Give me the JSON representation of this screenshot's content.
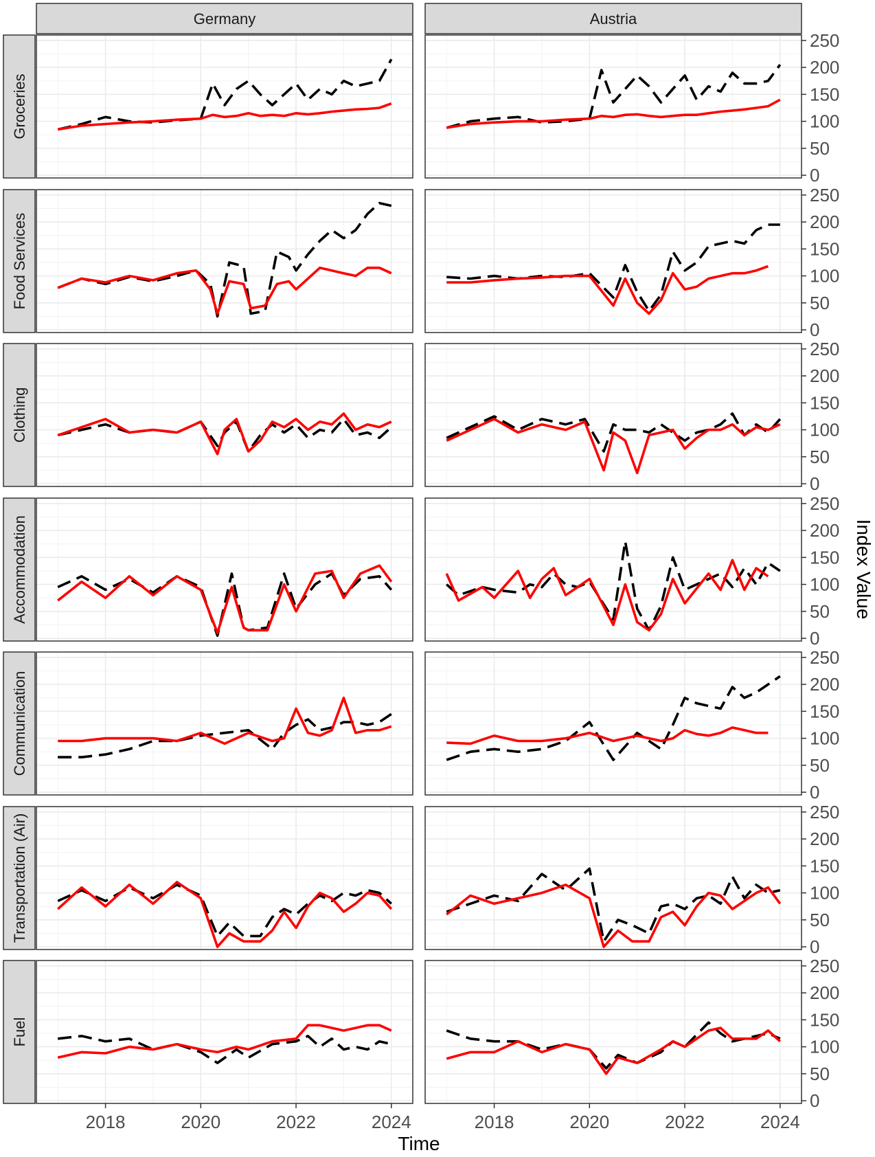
{
  "chart_data": {
    "type": "line",
    "facet_columns": [
      "Germany",
      "Austria"
    ],
    "facet_rows": [
      "Groceries",
      "Food Services",
      "Clothing",
      "Accommodation",
      "Communication",
      "Transportation (Air)",
      "Fuel"
    ],
    "xlabel": "Time",
    "ylabel": "Index Value",
    "x_ticks": [
      "2018",
      "2020",
      "2022",
      "2024"
    ],
    "y_ticks": [
      0,
      50,
      100,
      150,
      200,
      250
    ],
    "xlim": [
      2016.55,
      2024.45
    ],
    "ylim": [
      -5,
      260
    ],
    "grid": "on",
    "series_styles": [
      {
        "style": "dashed",
        "color": "#000000"
      },
      {
        "style": "solid",
        "color": "#ff0000"
      }
    ],
    "panels": [
      {
        "country": "Germany",
        "category": "Groceries",
        "x": [
          2017.0,
          2017.5,
          2018.0,
          2018.5,
          2019.0,
          2019.5,
          2020.0,
          2020.25,
          2020.5,
          2020.75,
          2021.0,
          2021.25,
          2021.5,
          2021.75,
          2022.0,
          2022.25,
          2022.5,
          2022.75,
          2023.0,
          2023.25,
          2023.5,
          2023.75,
          2024.0
        ],
        "dashed": [
          85,
          95,
          108,
          100,
          98,
          102,
          105,
          170,
          130,
          160,
          175,
          150,
          130,
          150,
          170,
          140,
          160,
          150,
          175,
          165,
          170,
          175,
          215
        ],
        "solid": [
          85,
          92,
          95,
          98,
          100,
          103,
          105,
          112,
          108,
          110,
          115,
          110,
          112,
          110,
          115,
          113,
          115,
          118,
          120,
          122,
          123,
          125,
          133
        ]
      },
      {
        "country": "Austria",
        "category": "Groceries",
        "x": [
          2017.0,
          2017.5,
          2018.0,
          2018.5,
          2019.0,
          2019.5,
          2020.0,
          2020.25,
          2020.5,
          2020.75,
          2021.0,
          2021.25,
          2021.5,
          2021.75,
          2022.0,
          2022.25,
          2022.5,
          2022.75,
          2023.0,
          2023.25,
          2023.5,
          2023.75,
          2024.0
        ],
        "dashed": [
          88,
          100,
          105,
          108,
          98,
          100,
          105,
          195,
          135,
          160,
          185,
          165,
          135,
          160,
          185,
          140,
          165,
          155,
          190,
          170,
          170,
          175,
          205
        ],
        "solid": [
          88,
          95,
          98,
          100,
          100,
          103,
          105,
          110,
          108,
          112,
          113,
          110,
          108,
          110,
          112,
          112,
          115,
          118,
          120,
          122,
          125,
          128,
          140
        ]
      },
      {
        "country": "Germany",
        "category": "Food Services",
        "x": [
          2017.0,
          2017.5,
          2018.0,
          2018.5,
          2019.0,
          2019.5,
          2019.9,
          2020.2,
          2020.35,
          2020.6,
          2020.9,
          2021.05,
          2021.35,
          2021.6,
          2021.85,
          2022.0,
          2022.25,
          2022.5,
          2022.75,
          2023.0,
          2023.25,
          2023.5,
          2023.75,
          2024.0
        ],
        "dashed": [
          78,
          95,
          85,
          98,
          90,
          100,
          110,
          85,
          25,
          125,
          118,
          30,
          35,
          145,
          135,
          110,
          140,
          165,
          185,
          170,
          185,
          215,
          235,
          230
        ],
        "solid": [
          78,
          95,
          88,
          100,
          92,
          105,
          110,
          75,
          30,
          90,
          85,
          40,
          45,
          85,
          90,
          75,
          95,
          115,
          110,
          105,
          100,
          115,
          115,
          105
        ]
      },
      {
        "country": "Austria",
        "category": "Food Services",
        "x": [
          2017.0,
          2017.5,
          2018.0,
          2018.5,
          2019.0,
          2019.5,
          2020.0,
          2020.5,
          2020.75,
          2021.0,
          2021.25,
          2021.5,
          2021.75,
          2022.0,
          2022.25,
          2022.5,
          2022.75,
          2023.0,
          2023.25,
          2023.5,
          2023.75,
          2024.0
        ],
        "dashed": [
          98,
          95,
          100,
          95,
          100,
          98,
          105,
          60,
          120,
          70,
          35,
          65,
          145,
          110,
          125,
          155,
          160,
          165,
          160,
          185,
          195,
          195
        ],
        "solid": [
          88,
          88,
          92,
          95,
          97,
          100,
          100,
          45,
          95,
          50,
          30,
          55,
          105,
          75,
          80,
          95,
          100,
          105,
          105,
          110,
          118,
          null
        ]
      },
      {
        "country": "Germany",
        "category": "Clothing",
        "x": [
          2017.0,
          2017.5,
          2018.0,
          2018.5,
          2019.0,
          2019.5,
          2020.0,
          2020.35,
          2020.5,
          2020.75,
          2021.0,
          2021.25,
          2021.5,
          2021.75,
          2022.0,
          2022.25,
          2022.5,
          2022.75,
          2023.0,
          2023.25,
          2023.5,
          2023.75,
          2024.0
        ],
        "dashed": [
          90,
          100,
          110,
          95,
          100,
          95,
          115,
          70,
          95,
          115,
          60,
          90,
          110,
          95,
          110,
          85,
          100,
          95,
          120,
          90,
          95,
          85,
          105
        ],
        "solid": [
          90,
          105,
          120,
          95,
          100,
          95,
          115,
          55,
          100,
          120,
          60,
          80,
          115,
          105,
          120,
          100,
          115,
          110,
          130,
          100,
          110,
          105,
          115
        ]
      },
      {
        "country": "Austria",
        "category": "Clothing",
        "x": [
          2017.0,
          2017.5,
          2018.0,
          2018.5,
          2019.0,
          2019.5,
          2019.9,
          2020.3,
          2020.5,
          2020.75,
          2021.0,
          2021.25,
          2021.5,
          2021.75,
          2022.0,
          2022.25,
          2022.5,
          2022.75,
          2023.0,
          2023.25,
          2023.5,
          2023.75,
          2024.0
        ],
        "dashed": [
          85,
          105,
          125,
          100,
          120,
          110,
          120,
          60,
          110,
          100,
          100,
          95,
          110,
          95,
          80,
          95,
          100,
          110,
          130,
          90,
          110,
          95,
          120
        ],
        "solid": [
          80,
          100,
          120,
          95,
          110,
          100,
          115,
          25,
          95,
          80,
          20,
          90,
          95,
          100,
          65,
          85,
          100,
          100,
          110,
          90,
          105,
          100,
          110
        ]
      },
      {
        "country": "Germany",
        "category": "Accommodation",
        "x": [
          2017.0,
          2017.5,
          2018.0,
          2018.5,
          2019.0,
          2019.5,
          2020.0,
          2020.35,
          2020.65,
          2020.9,
          2021.0,
          2021.4,
          2021.75,
          2022.0,
          2022.4,
          2022.75,
          2023.0,
          2023.35,
          2023.75,
          2024.0
        ],
        "dashed": [
          95,
          115,
          90,
          110,
          85,
          115,
          95,
          5,
          120,
          20,
          15,
          20,
          120,
          55,
          100,
          120,
          80,
          110,
          115,
          90
        ],
        "solid": [
          70,
          105,
          75,
          115,
          80,
          115,
          90,
          10,
          95,
          20,
          15,
          15,
          100,
          50,
          120,
          125,
          75,
          120,
          135,
          105
        ]
      },
      {
        "country": "Austria",
        "category": "Accommodation",
        "x": [
          2017.0,
          2017.25,
          2017.75,
          2018.0,
          2018.5,
          2018.75,
          2019.0,
          2019.25,
          2019.5,
          2019.75,
          2020.0,
          2020.5,
          2020.75,
          2021.0,
          2021.25,
          2021.5,
          2021.75,
          2022.0,
          2022.5,
          2022.75,
          2023.0,
          2023.25,
          2023.5,
          2023.75,
          2024.0
        ],
        "dashed": [
          100,
          80,
          95,
          90,
          85,
          100,
          95,
          120,
          100,
          95,
          105,
          35,
          180,
          55,
          15,
          60,
          150,
          90,
          110,
          120,
          95,
          130,
          100,
          140,
          125
        ],
        "solid": [
          120,
          70,
          95,
          75,
          125,
          75,
          110,
          130,
          80,
          95,
          110,
          25,
          100,
          30,
          15,
          45,
          110,
          65,
          120,
          90,
          145,
          90,
          130,
          115,
          null
        ]
      },
      {
        "country": "Germany",
        "category": "Communication",
        "x": [
          2017.0,
          2017.5,
          2018.0,
          2018.5,
          2019.0,
          2019.5,
          2020.0,
          2020.5,
          2021.0,
          2021.5,
          2021.75,
          2022.0,
          2022.25,
          2022.5,
          2022.75,
          2023.0,
          2023.25,
          2023.5,
          2023.75,
          2024.0
        ],
        "dashed": [
          65,
          65,
          70,
          80,
          95,
          95,
          105,
          110,
          115,
          80,
          110,
          125,
          135,
          115,
          120,
          130,
          130,
          125,
          130,
          145
        ],
        "solid": [
          95,
          95,
          100,
          100,
          100,
          95,
          110,
          90,
          110,
          95,
          100,
          155,
          110,
          105,
          115,
          175,
          110,
          115,
          115,
          122
        ]
      },
      {
        "country": "Austria",
        "category": "Communication",
        "x": [
          2017.0,
          2017.5,
          2018.0,
          2018.5,
          2019.0,
          2019.5,
          2020.0,
          2020.5,
          2021.0,
          2021.5,
          2021.75,
          2022.0,
          2022.25,
          2022.5,
          2022.75,
          2023.0,
          2023.25,
          2023.5,
          2023.75,
          2024.0
        ],
        "dashed": [
          60,
          75,
          80,
          75,
          80,
          95,
          130,
          60,
          110,
          80,
          125,
          175,
          165,
          160,
          155,
          195,
          175,
          185,
          200,
          215
        ],
        "solid": [
          92,
          90,
          105,
          95,
          95,
          100,
          110,
          95,
          105,
          95,
          100,
          115,
          108,
          105,
          110,
          120,
          115,
          110,
          110,
          null
        ]
      },
      {
        "country": "Germany",
        "category": "Transportation (Air)",
        "x": [
          2017.0,
          2017.5,
          2018.0,
          2018.5,
          2019.0,
          2019.5,
          2020.0,
          2020.35,
          2020.6,
          2020.9,
          2021.25,
          2021.5,
          2021.75,
          2022.0,
          2022.25,
          2022.5,
          2022.75,
          2023.0,
          2023.25,
          2023.5,
          2023.75,
          2024.0
        ],
        "dashed": [
          85,
          105,
          85,
          110,
          90,
          115,
          95,
          20,
          45,
          20,
          20,
          55,
          70,
          60,
          80,
          95,
          85,
          100,
          95,
          105,
          100,
          80
        ],
        "solid": [
          70,
          110,
          75,
          115,
          80,
          120,
          90,
          0,
          25,
          10,
          10,
          30,
          65,
          35,
          75,
          100,
          90,
          65,
          80,
          100,
          95,
          70
        ]
      },
      {
        "country": "Austria",
        "category": "Transportation (Air)",
        "x": [
          2017.0,
          2017.5,
          2018.0,
          2018.5,
          2019.0,
          2019.5,
          2020.0,
          2020.3,
          2020.6,
          2020.9,
          2021.25,
          2021.5,
          2021.75,
          2022.0,
          2022.25,
          2022.5,
          2022.75,
          2023.0,
          2023.25,
          2023.5,
          2023.75,
          2024.0
        ],
        "dashed": [
          65,
          80,
          95,
          85,
          135,
          105,
          145,
          10,
          50,
          40,
          25,
          75,
          80,
          70,
          90,
          95,
          80,
          130,
          90,
          115,
          100,
          105
        ],
        "solid": [
          60,
          95,
          80,
          90,
          100,
          115,
          90,
          0,
          30,
          10,
          10,
          55,
          65,
          40,
          75,
          100,
          95,
          70,
          85,
          100,
          110,
          80
        ]
      },
      {
        "country": "Germany",
        "category": "Fuel",
        "x": [
          2017.0,
          2017.5,
          2018.0,
          2018.5,
          2019.0,
          2019.5,
          2020.0,
          2020.35,
          2020.75,
          2021.0,
          2021.5,
          2022.0,
          2022.25,
          2022.5,
          2022.75,
          2023.0,
          2023.25,
          2023.5,
          2023.75,
          2024.0
        ],
        "dashed": [
          115,
          120,
          110,
          115,
          95,
          105,
          90,
          70,
          95,
          80,
          105,
          110,
          120,
          100,
          115,
          95,
          100,
          95,
          110,
          105
        ],
        "solid": [
          80,
          90,
          88,
          100,
          95,
          105,
          95,
          90,
          100,
          95,
          110,
          115,
          140,
          140,
          135,
          130,
          135,
          140,
          140,
          130
        ]
      },
      {
        "country": "Austria",
        "category": "Fuel",
        "x": [
          2017.0,
          2017.5,
          2018.0,
          2018.5,
          2019.0,
          2019.5,
          2020.0,
          2020.35,
          2020.6,
          2021.0,
          2021.5,
          2021.75,
          2022.0,
          2022.5,
          2022.75,
          2023.0,
          2023.5,
          2023.75,
          2024.0
        ],
        "dashed": [
          130,
          115,
          110,
          110,
          95,
          105,
          95,
          60,
          85,
          70,
          90,
          110,
          100,
          145,
          125,
          110,
          120,
          125,
          115
        ],
        "solid": [
          78,
          90,
          90,
          110,
          90,
          105,
          95,
          50,
          80,
          70,
          95,
          110,
          100,
          130,
          135,
          115,
          115,
          130,
          110
        ]
      }
    ]
  }
}
